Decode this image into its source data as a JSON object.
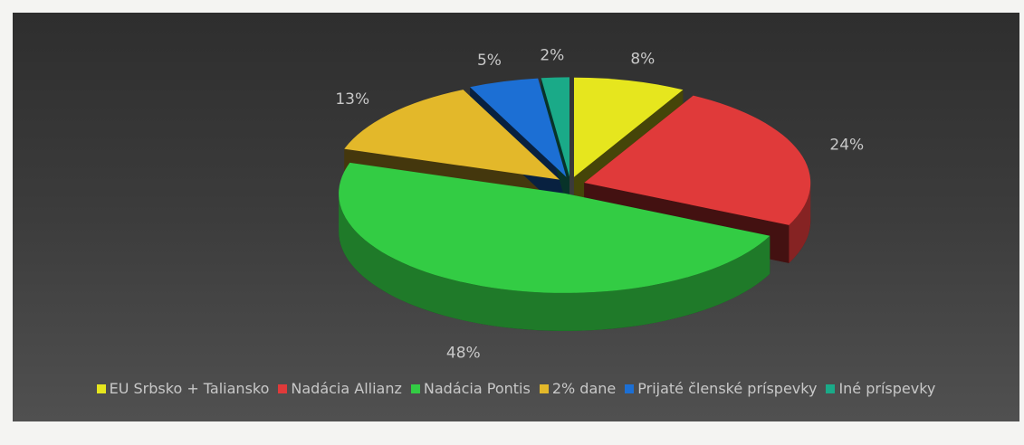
{
  "chart_data": {
    "type": "pie",
    "categories": [
      "EU Srbsko + Taliansko",
      "Nadácia Allianz",
      "Nadácia Pontis",
      "2% dane",
      "Prijaté členské príspevky",
      "Iné príspevky"
    ],
    "values": [
      8,
      24,
      48,
      13,
      5,
      2
    ],
    "value_labels": [
      "8%",
      "24%",
      "48%",
      "13%",
      "5%",
      "2%"
    ],
    "colors": [
      "#e6e61e",
      "#e03a3a",
      "#33cc44",
      "#e3b82a",
      "#1c6fd4",
      "#1aaa88"
    ],
    "legend": "bottom"
  }
}
